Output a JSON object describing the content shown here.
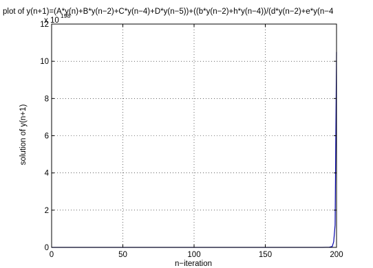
{
  "chart_data": {
    "type": "line",
    "title": "plot of y(n+1)=(A*y(n)+B*y(n−2)+C*y(n−4)+D*y(n−5))+((b*y(n−2)+h*y(n−4))/(d*y(n−2)+e*y(n−4",
    "xlabel": "n−iteration",
    "ylabel": "solution of y(n+1)",
    "xlim": [
      0,
      200
    ],
    "ylim": [
      0,
      12
    ],
    "xticks": [
      0,
      50,
      100,
      150,
      200
    ],
    "yticks": [
      0,
      2,
      4,
      6,
      8,
      10,
      12
    ],
    "y_exponent_label": "x 10",
    "y_exponent_power": "198",
    "grid": true,
    "line_color": "#0000aa",
    "series": [
      {
        "x": [
          0,
          50,
          100,
          150,
          190,
          195,
          197,
          198,
          199,
          200
        ],
        "values": [
          0,
          0,
          0,
          0,
          0,
          0.01,
          0.05,
          0.3,
          1.2,
          10.5
        ]
      }
    ]
  }
}
